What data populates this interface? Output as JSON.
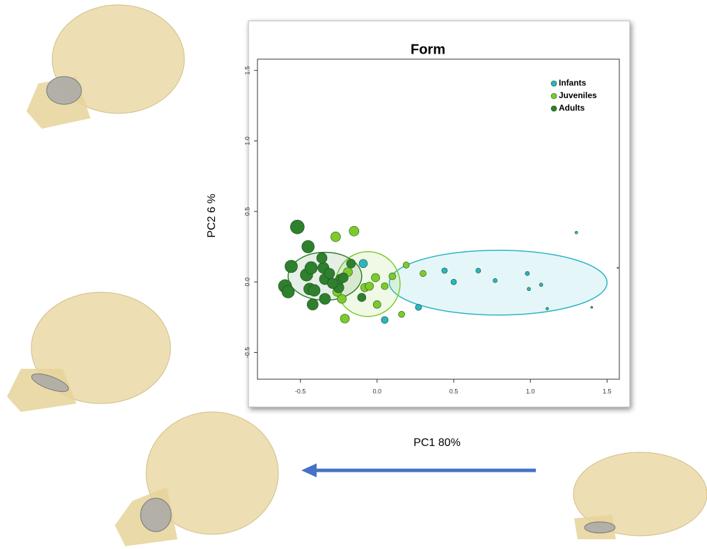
{
  "chart_data": {
    "type": "scatter",
    "title": "Form",
    "x_label": "PC1  80%",
    "y_label": "PC2  6 %",
    "xlim": [
      -0.78,
      1.58
    ],
    "ylim": [
      -0.69,
      1.58
    ],
    "xticks": [
      {
        "value": -0.5,
        "label": "-0.5"
      },
      {
        "value": 0,
        "label": "0.0"
      },
      {
        "value": 0.5,
        "label": "0.5"
      },
      {
        "value": 1,
        "label": "1.0"
      },
      {
        "value": 1.5,
        "label": "1.5"
      }
    ],
    "yticks": [
      {
        "value": -0.5,
        "label": "-0.5"
      },
      {
        "value": 0,
        "label": "0.0"
      },
      {
        "value": 0.5,
        "label": "0.5"
      },
      {
        "value": 1,
        "label": "1.0"
      },
      {
        "value": 1.5,
        "label": "1.5"
      }
    ],
    "legend": "top-right",
    "series": [
      {
        "name": "Infants",
        "color": "#2bb5c3",
        "x": [
          -0.09,
          0.05,
          0.27,
          0.44,
          0.5,
          0.66,
          0.77,
          0.98,
          0.99,
          1.07,
          1.11,
          1.3,
          1.4,
          1.57
        ],
        "values": [
          0.13,
          -0.27,
          -0.18,
          0.08,
          0,
          0.08,
          0.01,
          0.06,
          -0.05,
          -0.02,
          -0.19,
          0.35,
          -0.18,
          0.1
        ],
        "sizes": [
          6,
          5,
          4.5,
          4,
          4,
          3.5,
          3,
          3,
          2.5,
          2.5,
          2,
          2,
          1.5,
          1
        ],
        "ellipse": {
          "cx": 0.79,
          "cy": -0.005,
          "rx": 0.71,
          "ry": 0.23
        }
      },
      {
        "name": "Juveniles",
        "color": "#7dcb2b",
        "x": [
          -0.27,
          -0.15,
          -0.01,
          -0.23,
          -0.21,
          -0.08,
          -0.05,
          0,
          0.05,
          0.1,
          0.19,
          0.16,
          0.3,
          -0.19,
          -0.26
        ],
        "values": [
          0.32,
          0.36,
          0.03,
          -0.12,
          -0.26,
          -0.04,
          -0.03,
          -0.16,
          -0.03,
          0.04,
          0.12,
          -0.23,
          0.06,
          0.07,
          -0.07
        ],
        "sizes": [
          7,
          7,
          6,
          6.5,
          6.5,
          6,
          6,
          5.5,
          5,
          5,
          4.5,
          4.5,
          4.5,
          6.5,
          6.5
        ],
        "ellipse": {
          "cx": -0.06,
          "cy": -0.015,
          "rx": 0.21,
          "ry": 0.23
        }
      },
      {
        "name": "Adults",
        "color": "#2e7f2e",
        "x": [
          -0.52,
          -0.45,
          -0.56,
          -0.6,
          -0.58,
          -0.46,
          -0.43,
          -0.44,
          -0.41,
          -0.42,
          -0.35,
          -0.34,
          -0.31,
          -0.25,
          -0.34,
          -0.24,
          -0.22,
          -0.29,
          -0.17,
          -0.1,
          -0.36
        ],
        "values": [
          0.39,
          0.25,
          0.11,
          -0.03,
          -0.07,
          0.05,
          0.1,
          -0.05,
          -0.06,
          -0.16,
          0.1,
          0.02,
          0.06,
          -0.04,
          -0.12,
          0.02,
          0.03,
          -0.01,
          0.13,
          -0.11,
          0.17
        ],
        "sizes": [
          10,
          9,
          9,
          9.5,
          9,
          9,
          9,
          8.5,
          8.5,
          8,
          8,
          8,
          7.5,
          7.5,
          8,
          7,
          7,
          7.5,
          6.5,
          6,
          7.5
        ],
        "ellipse": {
          "cx": -0.34,
          "cy": 0.04,
          "rx": 0.24,
          "ry": 0.17
        }
      }
    ]
  }
}
